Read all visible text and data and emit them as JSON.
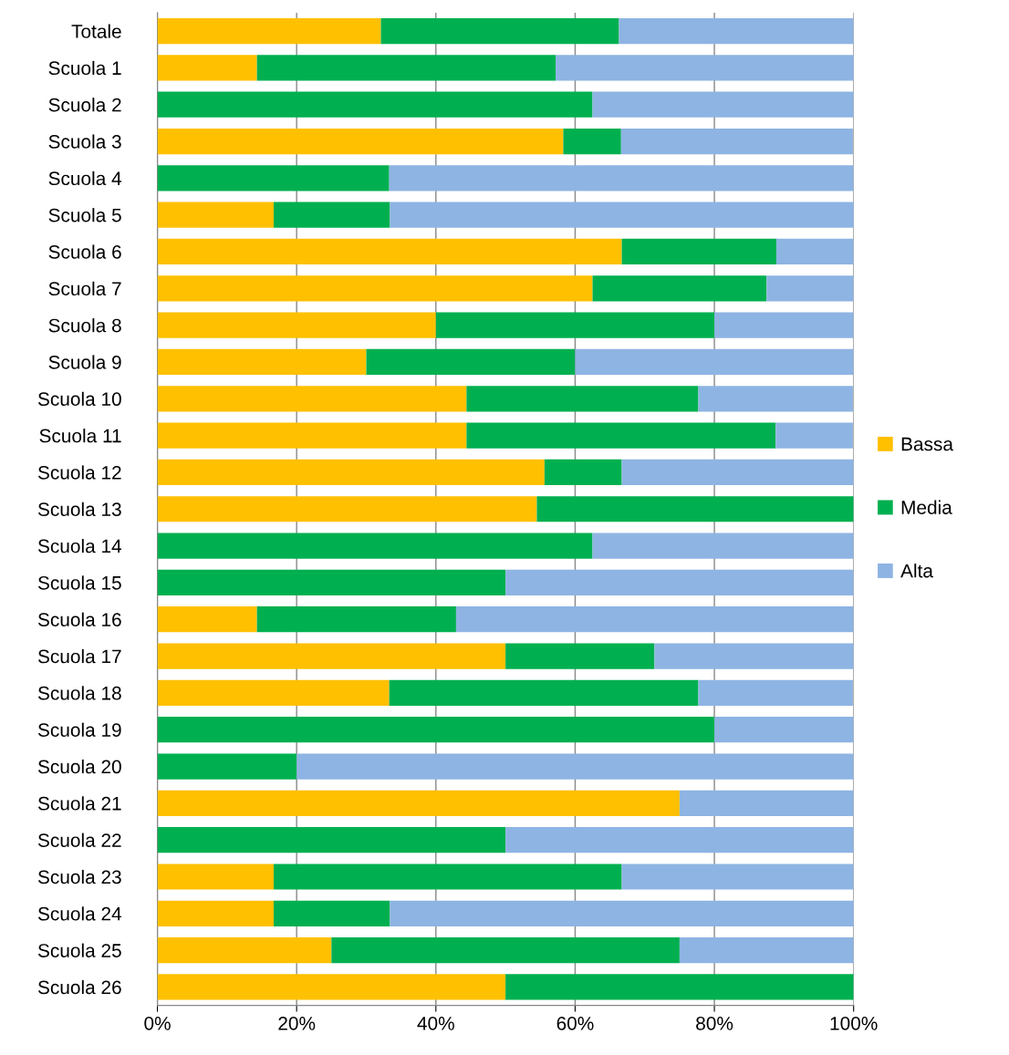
{
  "chart_data": {
    "type": "bar",
    "orientation": "horizontal",
    "stacked": true,
    "categories": [
      "Totale",
      "Scuola 1",
      "Scuola 2",
      "Scuola 3",
      "Scuola 4",
      "Scuola 5",
      "Scuola 6",
      "Scuola 7",
      "Scuola 8",
      "Scuola 9",
      "Scuola 10",
      "Scuola 11",
      "Scuola 12",
      "Scuola 13",
      "Scuola 14",
      "Scuola 15",
      "Scuola 16",
      "Scuola 17",
      "Scuola 18",
      "Scuola 19",
      "Scuola 20",
      "Scuola 21",
      "Scuola 22",
      "Scuola 23",
      "Scuola 24",
      "Scuola 25",
      "Scuola 26"
    ],
    "series": [
      {
        "name": "Bassa",
        "color": "#ffc000",
        "values": [
          32.1,
          14.3,
          0,
          58.3,
          0,
          16.7,
          66.7,
          62.5,
          40,
          30,
          44.4,
          44.4,
          55.6,
          54.5,
          0,
          0,
          14.3,
          50,
          33.3,
          0,
          0,
          75,
          0,
          16.7,
          16.7,
          25,
          50
        ]
      },
      {
        "name": "Media",
        "color": "#00b050",
        "values": [
          34.2,
          42.9,
          62.5,
          8.3,
          33.3,
          16.7,
          22.2,
          25,
          40,
          30,
          33.3,
          44.4,
          11.1,
          45.5,
          62.5,
          50,
          28.6,
          21.4,
          44.4,
          80,
          20,
          0,
          50,
          50,
          16.7,
          50,
          50
        ]
      },
      {
        "name": "Alta",
        "color": "#8eb4e3",
        "values": [
          33.7,
          42.9,
          37.5,
          33.3,
          66.7,
          66.7,
          11.1,
          12.5,
          20,
          40,
          22.2,
          11.1,
          33.3,
          0,
          37.5,
          50,
          57.1,
          28.6,
          22.2,
          20,
          80,
          25,
          50,
          33.3,
          66.7,
          25,
          0
        ]
      }
    ],
    "xlim": [
      0,
      100
    ],
    "xticks": [
      {
        "value": 0,
        "label": "0%"
      },
      {
        "value": 20,
        "label": "20%"
      },
      {
        "value": 40,
        "label": "40%"
      },
      {
        "value": 60,
        "label": "60%"
      },
      {
        "value": 80,
        "label": "80%"
      },
      {
        "value": 100,
        "label": "100%"
      }
    ],
    "grid": "x",
    "legend": "right"
  }
}
